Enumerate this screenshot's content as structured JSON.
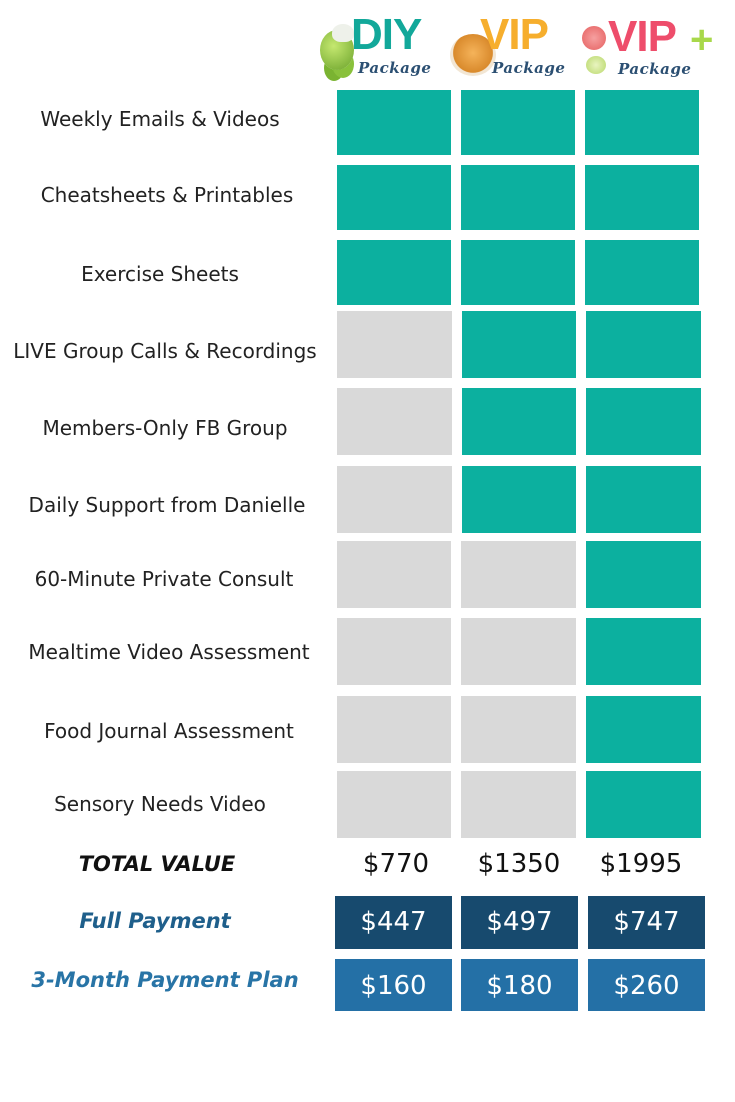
{
  "packages": [
    {
      "name": "DIY",
      "sub": "Package",
      "color": "#12a89a"
    },
    {
      "name": "VIP",
      "sub": "Package",
      "color": "#f6ae2d"
    },
    {
      "name": "VIP",
      "sub": "Package",
      "color": "#ee4d6b",
      "plus": "+",
      "plus_color": "#a8d84a"
    }
  ],
  "features": [
    {
      "label": "Weekly Emails & Videos",
      "included": [
        true,
        true,
        true
      ]
    },
    {
      "label": "Cheatsheets & Printables",
      "included": [
        true,
        true,
        true
      ]
    },
    {
      "label": "Exercise Sheets",
      "included": [
        true,
        true,
        true
      ]
    },
    {
      "label": "LIVE Group Calls & Recordings",
      "included": [
        false,
        true,
        true
      ]
    },
    {
      "label": "Members-Only FB Group",
      "included": [
        false,
        true,
        true
      ]
    },
    {
      "label": "Daily Support from Danielle",
      "included": [
        false,
        true,
        true
      ]
    },
    {
      "label": "60-Minute Private Consult",
      "included": [
        false,
        false,
        true
      ]
    },
    {
      "label": "Mealtime Video Assessment",
      "included": [
        false,
        false,
        true
      ]
    },
    {
      "label": "Food Journal Assessment",
      "included": [
        false,
        false,
        true
      ]
    },
    {
      "label": "Sensory Needs Video",
      "included": [
        false,
        false,
        true
      ]
    }
  ],
  "total": {
    "label": "TOTAL VALUE",
    "values": [
      "$770",
      "$1350",
      "$1995"
    ]
  },
  "full_payment": {
    "label": "Full Payment",
    "values": [
      "$447",
      "$497",
      "$747"
    ],
    "label_color": "#1f5f8b",
    "box_color": "#174a6e"
  },
  "payment_plan": {
    "label": "3-Month Payment Plan",
    "values": [
      "$160",
      "$180",
      "$260"
    ],
    "label_color": "#2874a6",
    "box_color": "#2470a6"
  },
  "colors": {
    "included": "#0cb09f",
    "excluded": "#d9d9d9"
  }
}
